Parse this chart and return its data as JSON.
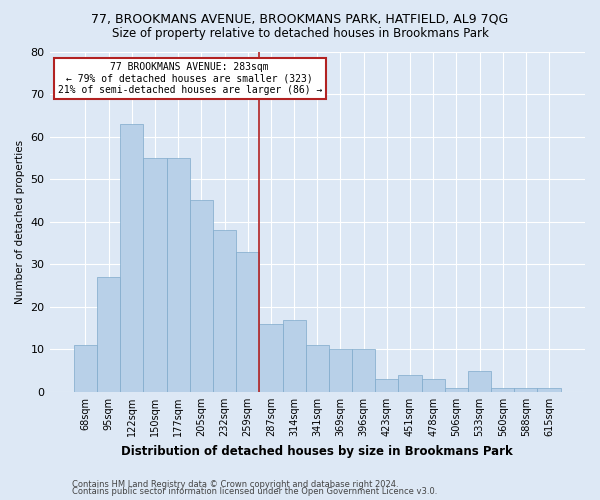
{
  "title": "77, BROOKMANS AVENUE, BROOKMANS PARK, HATFIELD, AL9 7QG",
  "subtitle": "Size of property relative to detached houses in Brookmans Park",
  "xlabel": "Distribution of detached houses by size in Brookmans Park",
  "ylabel": "Number of detached properties",
  "categories": [
    "68sqm",
    "95sqm",
    "122sqm",
    "150sqm",
    "177sqm",
    "205sqm",
    "232sqm",
    "259sqm",
    "287sqm",
    "314sqm",
    "341sqm",
    "369sqm",
    "396sqm",
    "423sqm",
    "451sqm",
    "478sqm",
    "506sqm",
    "533sqm",
    "560sqm",
    "588sqm",
    "615sqm"
  ],
  "values": [
    11,
    27,
    63,
    55,
    55,
    45,
    38,
    33,
    16,
    17,
    11,
    10,
    10,
    3,
    4,
    3,
    1,
    5,
    1,
    1,
    1
  ],
  "bar_color": "#b8d0e8",
  "bar_edge_color": "#7eaacb",
  "vline_index": 8,
  "vline_color": "#b22222",
  "annotation_text": "77 BROOKMANS AVENUE: 283sqm\n← 79% of detached houses are smaller (323)\n21% of semi-detached houses are larger (86) →",
  "annotation_box_color": "#ffffff",
  "annotation_box_edge": "#b22222",
  "ylim": [
    0,
    80
  ],
  "yticks": [
    0,
    10,
    20,
    30,
    40,
    50,
    60,
    70,
    80
  ],
  "footer1": "Contains HM Land Registry data © Crown copyright and database right 2024.",
  "footer2": "Contains public sector information licensed under the Open Government Licence v3.0.",
  "bg_color": "#dde8f5",
  "plot_bg_color": "#dde8f5",
  "grid_color": "#ffffff",
  "title_fontsize": 9,
  "subtitle_fontsize": 8.5,
  "xlabel_fontsize": 8.5,
  "ylabel_fontsize": 7.5,
  "tick_fontsize": 7,
  "annotation_fontsize": 7,
  "footer_fontsize": 6
}
